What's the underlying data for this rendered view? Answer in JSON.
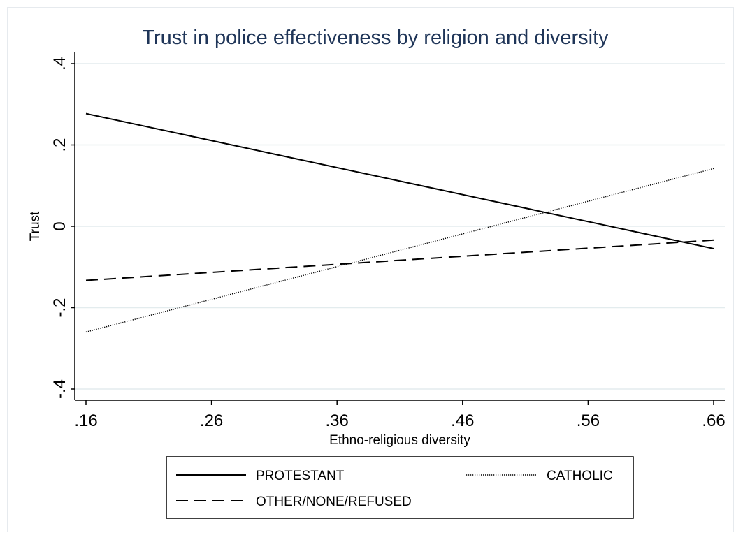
{
  "chart_data": {
    "type": "line",
    "title": "Trust in police effectiveness by religion and diversity",
    "xlabel": "Ethno-religious diversity",
    "ylabel": "Trust",
    "xlim": [
      0.16,
      0.66
    ],
    "ylim": [
      -0.4,
      0.4
    ],
    "x_ticks": [
      0.16,
      0.26,
      0.36,
      0.46,
      0.56,
      0.66
    ],
    "x_tick_labels": [
      ".16",
      ".26",
      ".36",
      ".46",
      ".56",
      ".66"
    ],
    "y_ticks": [
      -0.4,
      -0.2,
      0,
      0.2,
      0.4
    ],
    "y_tick_labels": [
      "-.4",
      "-.2",
      "0",
      ".2",
      ".4"
    ],
    "grid": true,
    "legend_position": "bottom",
    "series": [
      {
        "name": "PROTESTANT",
        "style": "solid",
        "x": [
          0.16,
          0.66
        ],
        "y": [
          0.277,
          -0.055
        ]
      },
      {
        "name": "CATHOLIC",
        "style": "dotted",
        "x": [
          0.16,
          0.66
        ],
        "y": [
          -0.26,
          0.142
        ]
      },
      {
        "name": "OTHER/NONE/REFUSED",
        "style": "dashed",
        "x": [
          0.16,
          0.66
        ],
        "y": [
          -0.133,
          -0.034
        ]
      }
    ]
  },
  "colors": {
    "title": "#1f3558",
    "grid": "#e3ecee",
    "frame_border": "#e6eaee",
    "line": "#000000"
  }
}
